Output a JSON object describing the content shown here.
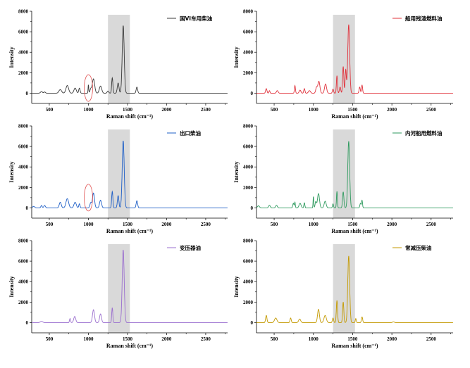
{
  "chart_data": [
    {
      "type": "line",
      "legend": "国VI车用柴油",
      "color": "#3a3a3a",
      "xlabel": "Raman shift (cm⁻¹)",
      "ylabel": "Intensity",
      "xlim": [
        275,
        2780
      ],
      "ylim": [
        -1000,
        8000
      ],
      "xticks": [
        500,
        1000,
        1500,
        2000,
        2500
      ],
      "yticks": [
        0,
        2000,
        4000,
        6000,
        8000
      ],
      "highlight_band": [
        1250,
        1530
      ],
      "annotation_ellipse": {
        "x": 1000,
        "y": 500
      },
      "peaks": [
        [
          400,
          150,
          30
        ],
        [
          440,
          120,
          25
        ],
        [
          640,
          350,
          40
        ],
        [
          730,
          750,
          40
        ],
        [
          830,
          500,
          35
        ],
        [
          885,
          500,
          20
        ],
        [
          1000,
          800,
          10
        ],
        [
          1030,
          400,
          25
        ],
        [
          1065,
          1400,
          35
        ],
        [
          1155,
          700,
          35
        ],
        [
          1250,
          200,
          25
        ],
        [
          1305,
          1500,
          18
        ],
        [
          1380,
          1000,
          25
        ],
        [
          1445,
          6600,
          30
        ],
        [
          1620,
          600,
          22
        ]
      ]
    },
    {
      "type": "line",
      "legend": "船用残渣燃料油",
      "color": "#e0303a",
      "xlabel": "Raman shift (cm⁻¹)",
      "ylabel": "Intensity",
      "xlim": [
        275,
        2780
      ],
      "ylim": [
        -1000,
        8000
      ],
      "xticks": [
        500,
        1000,
        1500,
        2000,
        2500
      ],
      "yticks": [
        0,
        2000,
        4000,
        6000,
        8000
      ],
      "highlight_band": [
        1250,
        1530
      ],
      "peaks": [
        [
          400,
          450,
          20
        ],
        [
          440,
          250,
          15
        ],
        [
          540,
          250,
          25
        ],
        [
          765,
          750,
          15
        ],
        [
          830,
          300,
          25
        ],
        [
          885,
          450,
          18
        ],
        [
          950,
          250,
          30
        ],
        [
          1040,
          550,
          25
        ],
        [
          1070,
          1150,
          30
        ],
        [
          1155,
          900,
          30
        ],
        [
          1250,
          400,
          18
        ],
        [
          1300,
          1700,
          16
        ],
        [
          1340,
          600,
          20
        ],
        [
          1380,
          2600,
          18
        ],
        [
          1412,
          2300,
          18
        ],
        [
          1450,
          6700,
          28
        ],
        [
          1590,
          600,
          18
        ],
        [
          1620,
          800,
          16
        ]
      ]
    },
    {
      "type": "line",
      "legend": "出口柴油",
      "color": "#1f5fc7",
      "xlabel": "Raman shift (cm⁻¹)",
      "ylabel": "Intensity",
      "xlim": [
        275,
        2780
      ],
      "ylim": [
        -1000,
        8000
      ],
      "xticks": [
        500,
        1000,
        1500,
        2000,
        2500
      ],
      "yticks": [
        0,
        2000,
        4000,
        6000,
        8000
      ],
      "highlight_band": [
        1250,
        1530
      ],
      "annotation_ellipse": {
        "x": 1000,
        "y": 1000
      },
      "peaks": [
        [
          300,
          150,
          30
        ],
        [
          400,
          230,
          20
        ],
        [
          440,
          230,
          25
        ],
        [
          640,
          550,
          30
        ],
        [
          730,
          900,
          40
        ],
        [
          830,
          550,
          35
        ],
        [
          885,
          400,
          18
        ],
        [
          1030,
          500,
          25
        ],
        [
          1065,
          1450,
          30
        ],
        [
          1155,
          750,
          30
        ],
        [
          1305,
          1600,
          18
        ],
        [
          1380,
          1200,
          22
        ],
        [
          1445,
          6550,
          30
        ],
        [
          1620,
          700,
          22
        ]
      ]
    },
    {
      "type": "line",
      "legend": "内河船用燃料油",
      "color": "#2e9a5e",
      "xlabel": "Raman shift (cm⁻¹)",
      "ylabel": "Intensity",
      "xlim": [
        275,
        2780
      ],
      "ylim": [
        -1000,
        8000
      ],
      "xticks": [
        500,
        1000,
        1500,
        2000,
        2500
      ],
      "yticks": [
        0,
        2000,
        4000,
        6000,
        8000
      ],
      "highlight_band": [
        1250,
        1530
      ],
      "peaks": [
        [
          300,
          200,
          30
        ],
        [
          440,
          250,
          25
        ],
        [
          530,
          250,
          25
        ],
        [
          745,
          450,
          18
        ],
        [
          765,
          550,
          12
        ],
        [
          830,
          450,
          30
        ],
        [
          885,
          500,
          15
        ],
        [
          1000,
          1100,
          10
        ],
        [
          1030,
          600,
          20
        ],
        [
          1065,
          1400,
          30
        ],
        [
          1150,
          650,
          30
        ],
        [
          1250,
          400,
          15
        ],
        [
          1300,
          1600,
          14
        ],
        [
          1380,
          1550,
          20
        ],
        [
          1450,
          6500,
          28
        ],
        [
          1600,
          450,
          18
        ],
        [
          1620,
          750,
          14
        ]
      ]
    },
    {
      "type": "line",
      "legend": "变压器油",
      "color": "#9b6fcf",
      "xlabel": "Raman shift (cm⁻¹)",
      "ylabel": "Intensity",
      "xlim": [
        275,
        2780
      ],
      "ylim": [
        -1000,
        8000
      ],
      "xticks": [
        500,
        1000,
        1500,
        2000,
        2500
      ],
      "yticks": [
        0,
        2000,
        4000,
        6000,
        8000
      ],
      "highlight_band": [
        1250,
        1530
      ],
      "peaks": [
        [
          400,
          120,
          35
        ],
        [
          765,
          400,
          15
        ],
        [
          825,
          600,
          30
        ],
        [
          1065,
          1250,
          30
        ],
        [
          1155,
          850,
          28
        ],
        [
          1305,
          1450,
          16
        ],
        [
          1445,
          7100,
          30
        ]
      ]
    },
    {
      "type": "line",
      "legend": "常减压柴油",
      "color": "#c49a00",
      "xlabel": "Raman shift (cm⁻¹)",
      "ylabel": "Intensity",
      "xlim": [
        275,
        2780
      ],
      "ylim": [
        -1000,
        8000
      ],
      "xticks": [
        500,
        1000,
        1500,
        2000,
        2500
      ],
      "yticks": [
        0,
        2000,
        4000,
        6000,
        8000
      ],
      "highlight_band": [
        1250,
        1530
      ],
      "peaks": [
        [
          400,
          700,
          20
        ],
        [
          520,
          450,
          35
        ],
        [
          710,
          450,
          18
        ],
        [
          825,
          350,
          30
        ],
        [
          1065,
          1300,
          28
        ],
        [
          1150,
          700,
          35
        ],
        [
          1250,
          450,
          18
        ],
        [
          1300,
          2150,
          18
        ],
        [
          1380,
          2000,
          18
        ],
        [
          1450,
          6500,
          28
        ],
        [
          1540,
          400,
          14
        ],
        [
          1620,
          550,
          18
        ],
        [
          2020,
          60,
          30
        ]
      ]
    }
  ]
}
